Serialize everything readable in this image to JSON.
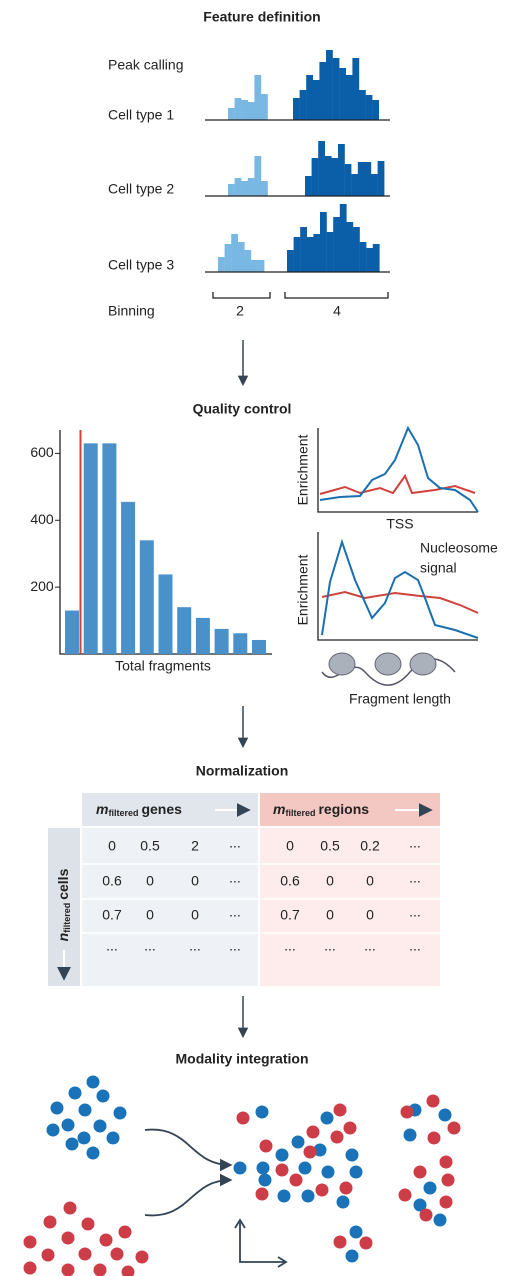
{
  "feature_definition": {
    "title": "Feature definition",
    "peak_calling": "Peak calling",
    "cell_types": [
      "Cell type 1",
      "Cell type 2",
      "Cell type 3"
    ],
    "binning": "Binning",
    "bins": [
      "2",
      "4"
    ]
  },
  "quality_control": {
    "title": "Quality control",
    "histogram": {
      "type": "bar",
      "values": [
        130,
        630,
        630,
        455,
        340,
        238,
        140,
        108,
        75,
        62,
        42
      ],
      "ylim": [
        0,
        670
      ],
      "yticks": [
        200,
        400,
        600
      ],
      "xlabel": "Total fragments",
      "color": "#4a90c9",
      "threshold_color": "#d0423b"
    },
    "tss_plot": {
      "ylabel": "Enrichment",
      "xlabel": "TSS"
    },
    "fragment_plot": {
      "ylabel": "Enrichment",
      "annotation": [
        "Nucleosome",
        "signal"
      ],
      "xlabel": "Fragment length"
    }
  },
  "normalization": {
    "title": "Normalization",
    "column_groups": [
      {
        "symbol": "m",
        "subscript": "filtered",
        "text": "genes"
      },
      {
        "symbol": "m",
        "subscript": "filtered",
        "text": "regions"
      }
    ],
    "row_header": {
      "symbol": "n",
      "subscript": "filtered",
      "text": "cells"
    },
    "rows": [
      [
        "0",
        "0.5",
        "2",
        "...",
        "0",
        "0.5",
        "0.2",
        "..."
      ],
      [
        "0.6",
        "0",
        "0",
        "...",
        "0.6",
        "0",
        "0",
        "..."
      ],
      [
        "0.7",
        "0",
        "0",
        "...",
        "0.7",
        "0",
        "0",
        "..."
      ],
      [
        "...",
        "...",
        "...",
        "...",
        "...",
        "...",
        "...",
        "..."
      ]
    ]
  },
  "modality_integration": {
    "title": "Modality integration"
  }
}
